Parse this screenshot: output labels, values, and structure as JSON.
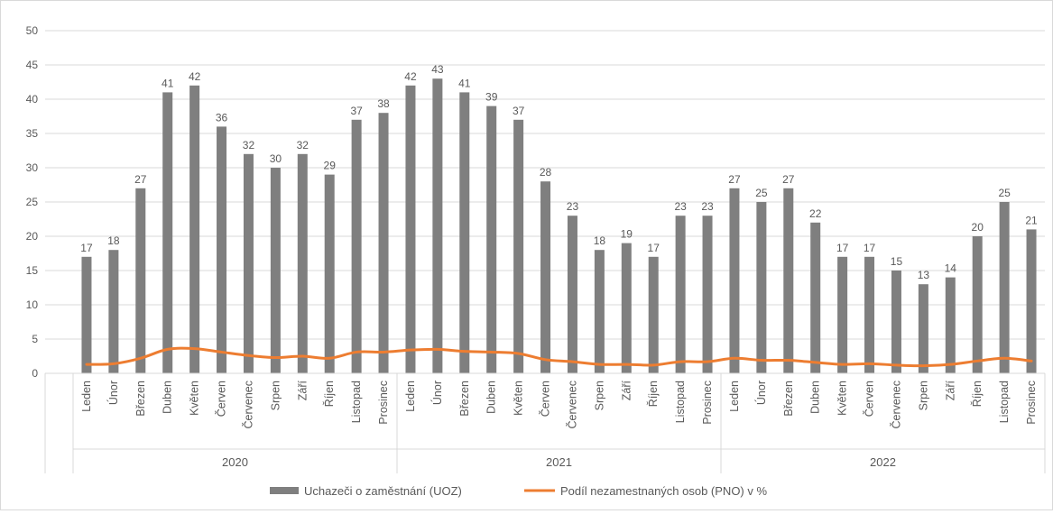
{
  "chart_data": {
    "type": "bar",
    "categories": [
      "Leden",
      "Únor",
      "Březen",
      "Duben",
      "Květen",
      "Červen",
      "Červenec",
      "Srpen",
      "Září",
      "Říjen",
      "Listopad",
      "Prosinec",
      "Leden",
      "Únor",
      "Březen",
      "Duben",
      "Květen",
      "Červen",
      "Červenec",
      "Srpen",
      "Září",
      "Říjen",
      "Listopad",
      "Prosinec",
      "Leden",
      "Únor",
      "Březen",
      "Duben",
      "Květen",
      "Červen",
      "Červenec",
      "Srpen",
      "Září",
      "Říjen",
      "Listopad",
      "Prosinec"
    ],
    "groups": [
      {
        "label": "2020",
        "start": 0,
        "count": 12
      },
      {
        "label": "2021",
        "start": 12,
        "count": 12
      },
      {
        "label": "2022",
        "start": 24,
        "count": 12
      }
    ],
    "series": [
      {
        "name": "Uchazeči o zaměstnání (UOZ)",
        "kind": "bar",
        "color": "#7f7f7f",
        "values": [
          17,
          18,
          27,
          41,
          42,
          36,
          32,
          30,
          32,
          29,
          37,
          38,
          42,
          43,
          41,
          39,
          37,
          28,
          23,
          18,
          19,
          17,
          23,
          23,
          27,
          25,
          27,
          22,
          17,
          17,
          15,
          13,
          14,
          20,
          25,
          21
        ],
        "data_labels": [
          17,
          18,
          27,
          41,
          42,
          36,
          32,
          30,
          32,
          29,
          37,
          38,
          42,
          43,
          41,
          39,
          37,
          28,
          23,
          18,
          19,
          17,
          23,
          23,
          27,
          25,
          27,
          22,
          17,
          17,
          15,
          13,
          14,
          20,
          25,
          21
        ]
      },
      {
        "name": "Podíl nezamestnaných osob (PNO) v %",
        "kind": "line",
        "color": "#ed7d31",
        "values": [
          1.3,
          1.4,
          2.2,
          3.5,
          3.6,
          3.1,
          2.6,
          2.3,
          2.5,
          2.2,
          3.1,
          3.1,
          3.4,
          3.5,
          3.2,
          3.1,
          2.9,
          2.0,
          1.7,
          1.3,
          1.3,
          1.2,
          1.7,
          1.7,
          2.2,
          1.9,
          1.9,
          1.6,
          1.3,
          1.4,
          1.2,
          1.1,
          1.3,
          1.8,
          2.2,
          1.8
        ]
      }
    ],
    "ylim": [
      0,
      50
    ],
    "yticks": [
      "0",
      "5",
      "10",
      "15",
      "20",
      "25",
      "30",
      "35",
      "40",
      "45",
      "50"
    ],
    "grid": true,
    "legend": "bottom",
    "title": "",
    "xlabel": "",
    "ylabel": ""
  }
}
